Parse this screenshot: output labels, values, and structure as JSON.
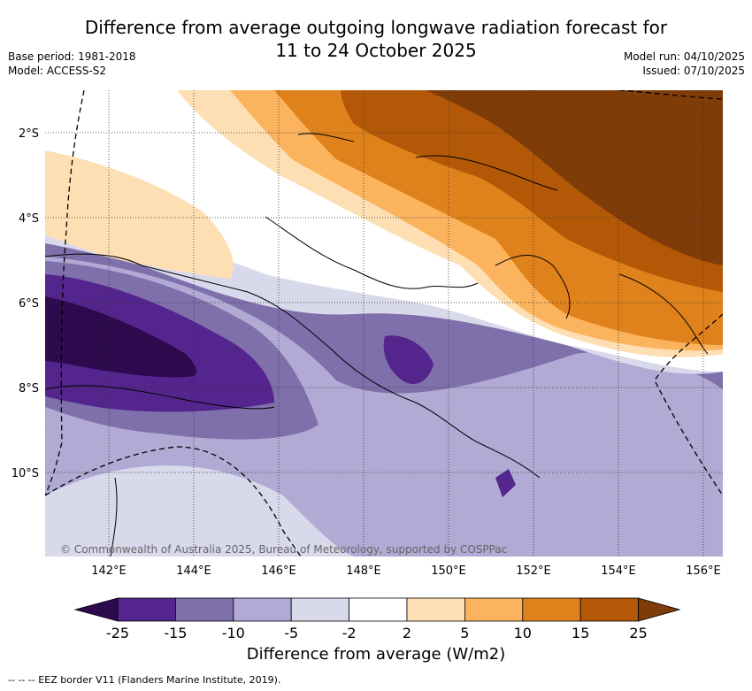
{
  "header": {
    "title_line1": "Difference from average outgoing longwave radiation forecast for",
    "title_line2": "11 to 24 October 2025",
    "base_period": "Base period: 1981-2018",
    "model": "Model: ACCESS-S2",
    "model_run": "Model run: 04/10/2025",
    "issued": "Issued: 07/10/2025"
  },
  "map": {
    "lat_labels": [
      "2°S",
      "4°S",
      "6°S",
      "8°S",
      "10°S"
    ],
    "lon_labels": [
      "142°E",
      "144°E",
      "146°E",
      "148°E",
      "150°E",
      "152°E",
      "154°E",
      "156°E"
    ],
    "copyright": "© Commonwealth of Australia 2025, Bureau of Meteorology, supported by COSPPac"
  },
  "colorbar": {
    "ticks": [
      "-25",
      "-15",
      "-10",
      "-5",
      "-2",
      "2",
      "5",
      "10",
      "15",
      "25"
    ],
    "colors": [
      "#2d0a4e",
      "#54258c",
      "#7f6fab",
      "#b0aad4",
      "#d9d9ec",
      "#ffffff",
      "#fedfb3",
      "#fbb35e",
      "#e0821c",
      "#b35806",
      "#7f3b08"
    ],
    "title": "Difference from average (W/m2)"
  },
  "footer": {
    "legend": "-- -- -- EEZ border V11 (Flanders Marine Institute, 2019)."
  }
}
